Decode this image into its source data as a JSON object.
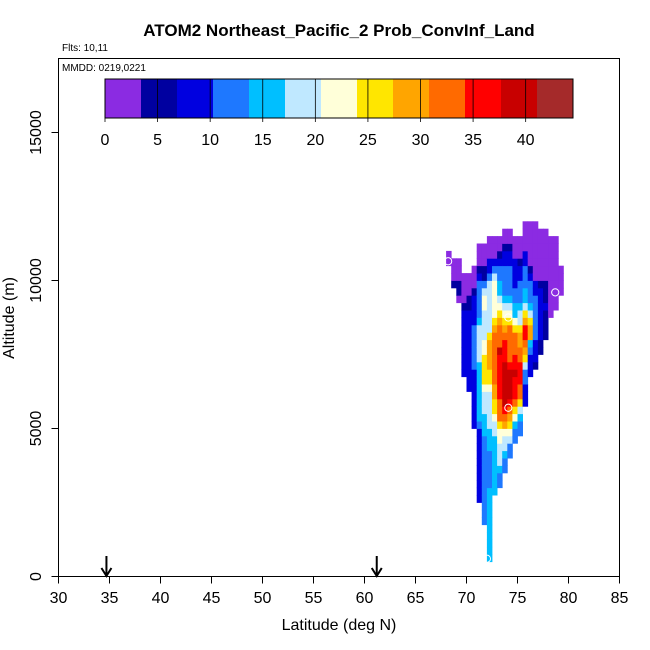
{
  "chart_data": {
    "type": "heatmap",
    "title": "ATOM2 Northeast_Pacific_2 Prob_ConvInf_Land",
    "flights_note": "Flts: 10,11",
    "date_note": "MMDD: 0219,0221",
    "xlabel": "Latitude (deg N)",
    "ylabel": "Altitude (m)",
    "xlim": [
      30,
      85
    ],
    "ylim": [
      0,
      17500
    ],
    "x_ticks": [
      "30",
      "35",
      "40",
      "45",
      "50",
      "55",
      "60",
      "65",
      "70",
      "75",
      "80",
      "85"
    ],
    "y_ticks": [
      "0",
      "5000",
      "10000",
      "15000"
    ],
    "colorbar": {
      "range": [
        0,
        44.5
      ],
      "ticks": [
        "0",
        "5",
        "10",
        "15",
        "20",
        "25",
        "30",
        "35",
        "40"
      ],
      "colors": [
        "#8b2be2",
        "#0000a0",
        "#0000e0",
        "#1e78ff",
        "#00bfff",
        "#bfe8ff",
        "#ffffd9",
        "#ffe600",
        "#ffa500",
        "#ff6a00",
        "#ff0000",
        "#c80000",
        "#a52a2a"
      ]
    },
    "flight_markers_lat": [
      34.7,
      61.2
    ],
    "mean_points": [
      {
        "lat": 68.2,
        "alt": 10650
      },
      {
        "lat": 78.7,
        "alt": 9600
      },
      {
        "lat": 74.1,
        "alt": 8750
      },
      {
        "lat": 74.1,
        "alt": 5700
      },
      {
        "lat": 72.0,
        "alt": 600
      }
    ],
    "lat_bin_width": 0.5,
    "alt_bin_height": 250,
    "columns": [
      {
        "lat": 68.0,
        "start": 10500,
        "values": [
          1.0,
          1.0
        ]
      },
      {
        "lat": 68.5,
        "start": 9750,
        "values": [
          4.0,
          2.0,
          1.0,
          1.0
        ]
      },
      {
        "lat": 69.0,
        "start": 9250,
        "values": [
          3.0,
          4.0,
          5.0,
          3.0,
          1.0,
          1.0
        ]
      },
      {
        "lat": 69.5,
        "start": 6750,
        "values": [
          7.0,
          7.0,
          7.0,
          7.0,
          7.0,
          7.0,
          7.0,
          7.0,
          7.0,
          6.0,
          3.0,
          2.0,
          1.0,
          1.0
        ]
      },
      {
        "lat": 70.0,
        "start": 6250,
        "values": [
          8.0,
          8.0,
          8.0,
          8.0,
          8.0,
          8.0,
          8.0,
          8.0,
          9.0,
          8.0,
          8.0,
          6.0,
          4.0,
          2.0,
          1.0,
          1.0
        ]
      },
      {
        "lat": 70.5,
        "start": 5000,
        "values": [
          9.0,
          9.0,
          9.0,
          9.0,
          9.0,
          9.0,
          9.0,
          9.0,
          12.0,
          13.0,
          13.0,
          13.0,
          13.0,
          13.0,
          10.0,
          8.0,
          8.0,
          8.0,
          4.0,
          2.0,
          1.0,
          1.0
        ]
      },
      {
        "lat": 71.0,
        "start": 2500,
        "values": [
          9.0,
          9.0,
          9.0,
          9.0,
          9.0,
          9.0,
          9.0,
          9.0,
          9.0,
          9.0,
          13.0,
          14.0,
          14.0,
          17.0,
          17.0,
          17.0,
          17.0,
          17.0,
          17.0,
          19.0,
          20.0,
          20.0,
          20.0,
          20.0,
          16.0,
          13.0,
          12.0,
          12.0,
          12.0,
          12.0,
          7.0,
          4.0,
          2.0,
          1.0,
          1.0
        ]
      },
      {
        "lat": 71.5,
        "start": 1750,
        "values": [
          12.0,
          12.0,
          12.0,
          12.0,
          12.0,
          12.0,
          12.0,
          12.0,
          12.0,
          12.0,
          12.0,
          13.0,
          15.0,
          15.0,
          16.0,
          19.0,
          19.0,
          19.0,
          22.0,
          25.0,
          25.0,
          25.0,
          25.0,
          22.0,
          21.0,
          20.0,
          20.0,
          20.0,
          20.0,
          21.0,
          21.0,
          20.0,
          13.0,
          6.0,
          4.0,
          3.0,
          1.0,
          1.0
        ]
      },
      {
        "lat": 72.0,
        "start": 500,
        "values": [
          15.0,
          15.0,
          15.0,
          15.0,
          15.0,
          15.0,
          15.0,
          14.0,
          14.0,
          14.0,
          13.0,
          13.0,
          13.0,
          13.0,
          13.0,
          14.0,
          17.0,
          17.0,
          18.0,
          20.0,
          20.0,
          20.0,
          20.0,
          22.0,
          25.0,
          27.0,
          30.0,
          30.0,
          30.0,
          29.0,
          24.0,
          19.0,
          19.0,
          19.0,
          19.0,
          20.0,
          20.0,
          19.0,
          12.0,
          9.0,
          8.0,
          3.0,
          1.0,
          1.0
        ]
      },
      {
        "lat": 72.5,
        "start": 2750,
        "values": [
          14.0,
          14.0,
          14.0,
          15.0,
          17.0,
          17.0,
          17.0,
          17.0,
          18.0,
          19.0,
          21.0,
          24.0,
          26.0,
          28.0,
          30.0,
          32.0,
          33.0,
          34.0,
          34.0,
          34.0,
          34.0,
          32.0,
          30.0,
          24.0,
          22.0,
          21.0,
          21.0,
          21.0,
          21.0,
          18.0,
          13.0,
          10.0,
          3.0,
          1.0,
          1.0
        ]
      },
      {
        "lat": 73.0,
        "start": 3000,
        "values": [
          11.0,
          13.0,
          15.0,
          18.0,
          19.0,
          19.0,
          22.0,
          23.0,
          26.0,
          31.0,
          34.0,
          34.0,
          35.0,
          35.0,
          35.0,
          35.0,
          37.0,
          37.0,
          38.0,
          34.0,
          31.0,
          31.0,
          28.0,
          24.0,
          21.0,
          18.0,
          16.0,
          15.0,
          13.0,
          13.0,
          8.0,
          4.0,
          1.0,
          1.0
        ]
      },
      {
        "lat": 73.5,
        "start": 3500,
        "values": [
          11.0,
          12.0,
          14.0,
          19.0,
          19.0,
          22.0,
          28.0,
          32.0,
          36.0,
          38.0,
          38.0,
          38.0,
          40.0,
          40.0,
          38.0,
          37.0,
          35.0,
          35.0,
          31.0,
          28.0,
          24.0,
          22.0,
          19.0,
          16.0,
          13.0,
          13.0,
          13.0,
          13.0,
          10.0,
          7.0,
          4.0,
          1.0,
          1.0
        ]
      },
      {
        "lat": 74.0,
        "start": 4000,
        "values": [
          12.0,
          13.0,
          18.0,
          23.0,
          24.0,
          28.0,
          32.0,
          37.0,
          40.0,
          40.0,
          40.0,
          41.0,
          37.0,
          34.0,
          34.0,
          34.0,
          34.0,
          31.0,
          26.0,
          22.0,
          18.0,
          15.0,
          13.0,
          12.0,
          12.0,
          11.0,
          9.0,
          7.0,
          4.0,
          1.0,
          1.0
        ]
      },
      {
        "lat": 74.5,
        "start": 4500,
        "values": [
          11.0,
          13.0,
          16.0,
          21.0,
          26.0,
          33.0,
          35.0,
          36.0,
          36.0,
          38.0,
          37.0,
          35.0,
          34.0,
          34.0,
          32.0,
          25.0,
          21.0,
          16.0,
          14.0,
          12.0,
          11.0,
          10.0,
          9.0,
          8.0,
          7.0,
          3.0,
          1.0,
          1.0
        ]
      },
      {
        "lat": 75.0,
        "start": 4750,
        "values": [
          11.0,
          12.0,
          15.0,
          20.0,
          27.0,
          31.0,
          33.0,
          36.0,
          37.0,
          36.0,
          34.0,
          32.0,
          30.0,
          28.0,
          26.0,
          20.0,
          18.0,
          15.0,
          13.0,
          12.0,
          11.0,
          9.0,
          8.0,
          6.0,
          2.0,
          1.0,
          1.0
        ]
      },
      {
        "lat": 75.5,
        "start": 5750,
        "values": [
          8.0,
          9.0,
          10.0,
          12.0,
          13.0,
          20.0,
          25.0,
          29.0,
          33.0,
          37.0,
          36.0,
          28.0,
          24.0,
          20.0,
          17.0,
          15.0,
          13.0,
          11.0,
          11.0,
          9.0,
          7.0,
          2.0,
          1.0,
          1.0,
          1.0
        ]
      },
      {
        "lat": 76.0,
        "start": 6750,
        "values": [
          8.0,
          8.0,
          9.0,
          13.0,
          16.0,
          28.0,
          28.0,
          24.0,
          20.0,
          15.0,
          13.0,
          12.0,
          11.0,
          9.0,
          6.0,
          1.0,
          1.0,
          1.0,
          1.0,
          1.0,
          1.0
        ]
      },
      {
        "lat": 76.5,
        "start": 7000,
        "values": [
          6.0,
          8.0,
          9.0,
          10.0,
          12.0,
          13.0,
          13.0,
          12.0,
          12.0,
          11.0,
          9.0,
          7.0,
          3.0,
          2.0,
          1.0,
          1.0,
          1.0,
          1.0,
          1.0,
          1.0
        ]
      },
      {
        "lat": 77.0,
        "start": 7500,
        "values": [
          5.0,
          6.0,
          8.0,
          9.0,
          9.0,
          10.0,
          10.0,
          9.0,
          7.0,
          6.0,
          3.0,
          2.0,
          1.0,
          1.0,
          1.0,
          1.0,
          1.0
        ]
      },
      {
        "lat": 77.5,
        "start": 8000,
        "values": [
          5.0,
          5.0,
          5.0,
          6.0,
          7.0,
          5.0,
          4.0,
          4.0,
          3.0,
          2.0,
          1.0,
          1.0,
          1.0,
          1.0,
          1.0
        ]
      },
      {
        "lat": 78.0,
        "start": 8750,
        "values": [
          3.0,
          3.0,
          3.0,
          2.0,
          2.0,
          1.0,
          1.0,
          1.0,
          1.0,
          1.0,
          1.0
        ]
      },
      {
        "lat": 78.5,
        "start": 9000,
        "values": [
          3.0,
          3.0,
          2.0,
          1.0,
          1.0,
          1.0,
          1.0,
          1.0,
          1.0,
          1.0
        ]
      },
      {
        "lat": 79.0,
        "start": 9500,
        "values": [
          1.0,
          1.0,
          1.0,
          1.0
        ]
      }
    ]
  }
}
